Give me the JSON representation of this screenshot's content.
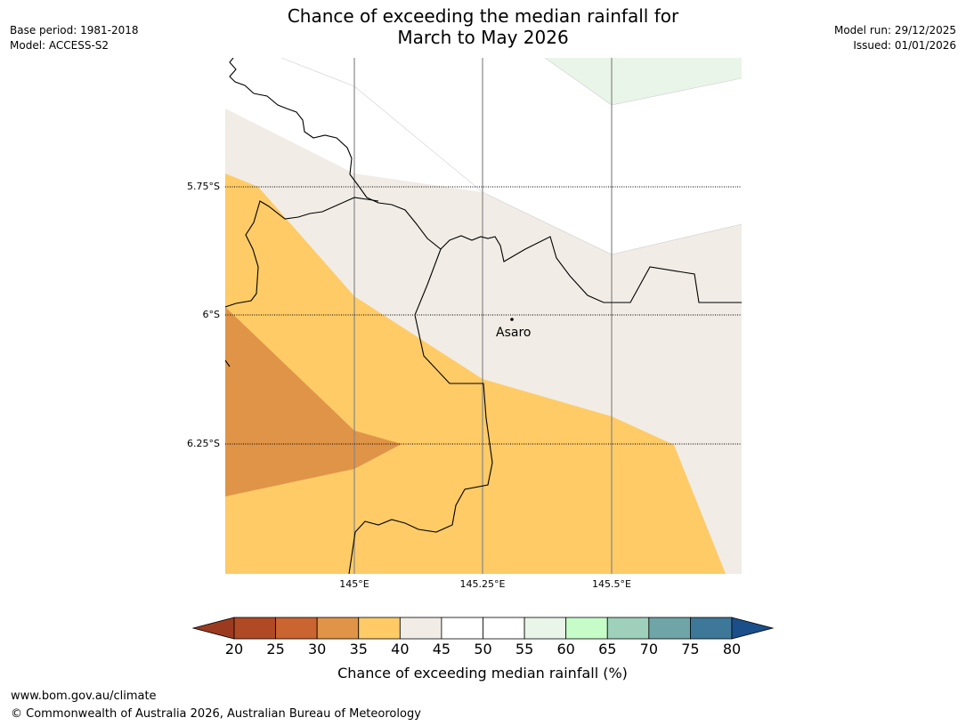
{
  "title": {
    "line1": "Chance of exceeding the median rainfall for",
    "line2": "March to May 2026"
  },
  "meta": {
    "base_period": "Base period: 1981-2018",
    "model": "Model: ACCESS-S2",
    "model_run": "Model run: 29/12/2025",
    "issued": "Issued: 01/01/2026"
  },
  "map": {
    "latitude_labels": [
      "5.75°S",
      "6°S",
      "6.25°S"
    ],
    "longitude_labels": [
      "145°E",
      "145.25°E",
      "145.5°E"
    ],
    "place": {
      "name": "Asaro"
    }
  },
  "colorbar": {
    "label": "Chance of exceeding median rainfall (%)",
    "ticks": [
      "20",
      "25",
      "30",
      "35",
      "40",
      "45",
      "50",
      "55",
      "60",
      "65",
      "70",
      "75",
      "80"
    ],
    "under_color": "#9c3a20",
    "over_color": "#1a4f8a",
    "colors": [
      "#b04a24",
      "#ca6430",
      "#e09447",
      "#fecb67",
      "#f1ece5",
      "#ffffff",
      "#ffffff",
      "#e9f5e8",
      "#c6fcc8",
      "#9ed0bb",
      "#6fa5a6",
      "#3e7899"
    ]
  },
  "footer": {
    "url": "www.bom.gov.au/climate",
    "copyright": "© Commonwealth of Australia 2026, Australian Bureau of Meteorology"
  }
}
